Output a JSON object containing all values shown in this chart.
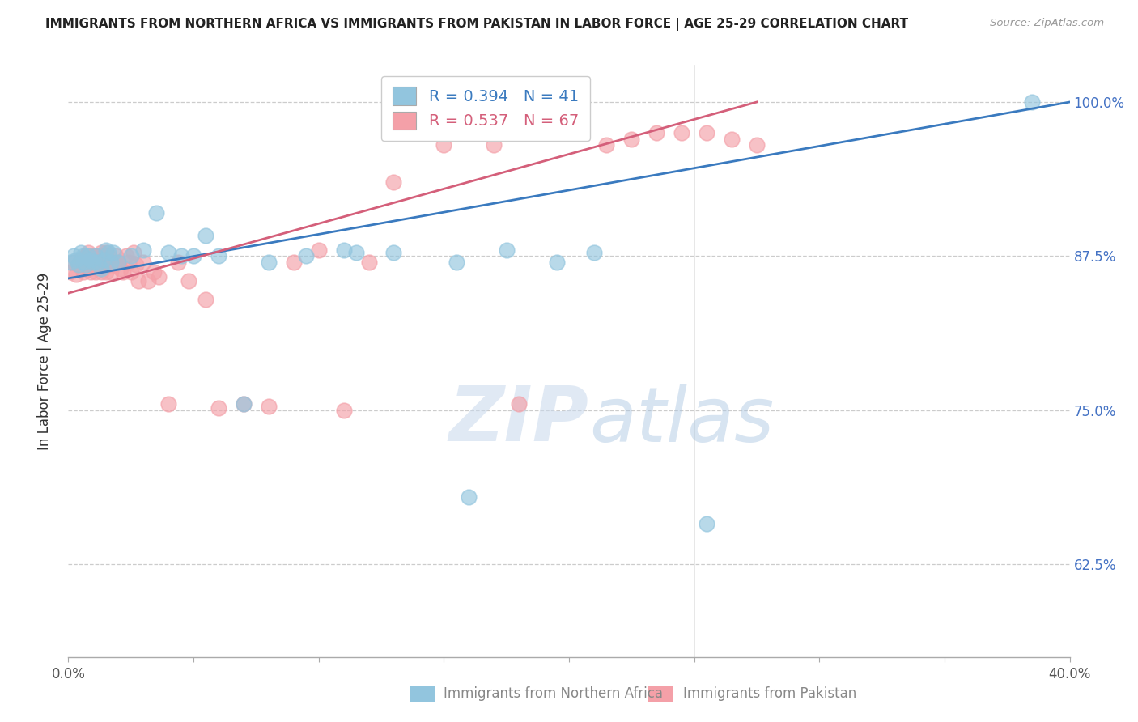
{
  "title": "IMMIGRANTS FROM NORTHERN AFRICA VS IMMIGRANTS FROM PAKISTAN IN LABOR FORCE | AGE 25-29 CORRELATION CHART",
  "source": "Source: ZipAtlas.com",
  "ylabel": "In Labor Force | Age 25-29",
  "xlim": [
    0.0,
    0.4
  ],
  "ylim": [
    0.55,
    1.03
  ],
  "yticks": [
    0.625,
    0.75,
    0.875,
    1.0
  ],
  "ytick_labels": [
    "62.5%",
    "75.0%",
    "87.5%",
    "100.0%"
  ],
  "xticks": [
    0.0,
    0.05,
    0.1,
    0.15,
    0.2,
    0.25,
    0.3,
    0.35,
    0.4
  ],
  "xtick_labels": [
    "0.0%",
    "",
    "",
    "",
    "",
    "",
    "",
    "",
    "40.0%"
  ],
  "legend_blue_R": "R = 0.394",
  "legend_blue_N": "N = 41",
  "legend_pink_R": "R = 0.537",
  "legend_pink_N": "N = 67",
  "blue_color": "#92c5de",
  "pink_color": "#f4a0a8",
  "blue_line_color": "#3a7abf",
  "pink_line_color": "#d45f7a",
  "watermark_zip": "ZIP",
  "watermark_atlas": "atlas",
  "blue_scatter_x": [
    0.001,
    0.002,
    0.003,
    0.004,
    0.005,
    0.006,
    0.006,
    0.007,
    0.008,
    0.009,
    0.01,
    0.011,
    0.012,
    0.013,
    0.014,
    0.015,
    0.016,
    0.017,
    0.018,
    0.02,
    0.025,
    0.03,
    0.035,
    0.04,
    0.045,
    0.05,
    0.055,
    0.06,
    0.07,
    0.08,
    0.095,
    0.11,
    0.13,
    0.155,
    0.175,
    0.195,
    0.115,
    0.16,
    0.21,
    0.255,
    0.385
  ],
  "blue_scatter_y": [
    0.87,
    0.875,
    0.872,
    0.868,
    0.878,
    0.875,
    0.87,
    0.868,
    0.875,
    0.872,
    0.87,
    0.875,
    0.87,
    0.865,
    0.872,
    0.88,
    0.878,
    0.87,
    0.878,
    0.87,
    0.875,
    0.88,
    0.91,
    0.878,
    0.875,
    0.875,
    0.892,
    0.875,
    0.755,
    0.87,
    0.875,
    0.88,
    0.878,
    0.87,
    0.88,
    0.87,
    0.878,
    0.68,
    0.878,
    0.658,
    1.0
  ],
  "pink_scatter_x": [
    0.001,
    0.002,
    0.003,
    0.004,
    0.005,
    0.006,
    0.007,
    0.007,
    0.008,
    0.008,
    0.009,
    0.009,
    0.01,
    0.01,
    0.011,
    0.011,
    0.012,
    0.012,
    0.013,
    0.013,
    0.014,
    0.014,
    0.015,
    0.015,
    0.016,
    0.016,
    0.017,
    0.018,
    0.019,
    0.02,
    0.021,
    0.022,
    0.023,
    0.024,
    0.025,
    0.026,
    0.027,
    0.028,
    0.03,
    0.032,
    0.034,
    0.036,
    0.04,
    0.044,
    0.048,
    0.055,
    0.06,
    0.07,
    0.08,
    0.09,
    0.1,
    0.11,
    0.12,
    0.13,
    0.14,
    0.15,
    0.16,
    0.17,
    0.18,
    0.2,
    0.215,
    0.225,
    0.235,
    0.245,
    0.255,
    0.265,
    0.275
  ],
  "pink_scatter_y": [
    0.862,
    0.87,
    0.86,
    0.868,
    0.872,
    0.862,
    0.875,
    0.87,
    0.865,
    0.878,
    0.87,
    0.862,
    0.875,
    0.868,
    0.875,
    0.862,
    0.87,
    0.875,
    0.862,
    0.878,
    0.87,
    0.875,
    0.862,
    0.878,
    0.868,
    0.875,
    0.862,
    0.868,
    0.875,
    0.87,
    0.865,
    0.862,
    0.875,
    0.87,
    0.862,
    0.878,
    0.868,
    0.855,
    0.87,
    0.855,
    0.862,
    0.858,
    0.755,
    0.87,
    0.855,
    0.84,
    0.752,
    0.755,
    0.753,
    0.87,
    0.88,
    0.75,
    0.87,
    0.935,
    0.975,
    0.965,
    0.975,
    0.965,
    0.755,
    0.975,
    0.965,
    0.97,
    0.975,
    0.975,
    0.975,
    0.97,
    0.965
  ],
  "blue_trend_x": [
    0.0,
    0.4
  ],
  "blue_trend_y": [
    0.857,
    1.0
  ],
  "pink_trend_x": [
    0.0,
    0.275
  ],
  "pink_trend_y": [
    0.845,
    1.0
  ]
}
